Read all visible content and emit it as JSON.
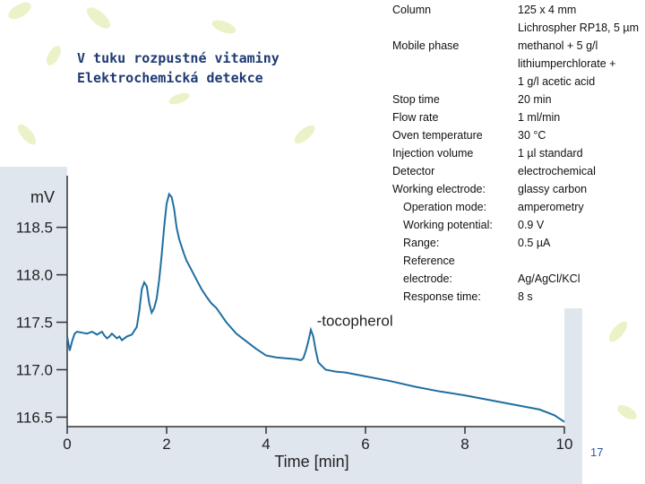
{
  "slide": {
    "title_line1": "V tuku rozpustné vitaminy",
    "title_line2": "Elektrochemická detekce",
    "page_number": "17"
  },
  "conditions": [
    {
      "key": "Column",
      "value": "125 x 4 mm"
    },
    {
      "key": "",
      "value": "Lichrospher RP18, 5 µm"
    },
    {
      "key": "Mobile phase",
      "value": "methanol + 5 g/l"
    },
    {
      "key": "",
      "value": "lithiumperchlorate +"
    },
    {
      "key": "",
      "value": "1 g/l acetic acid"
    },
    {
      "key": "Stop time",
      "value": "20 min"
    },
    {
      "key": "Flow rate",
      "value": "1 ml/min"
    },
    {
      "key": "Oven temperature",
      "value": "30 °C"
    },
    {
      "key": "Injection volume",
      "value": "1 µl standard"
    },
    {
      "key": "Detector",
      "value": "electrochemical"
    },
    {
      "key": "Working electrode:",
      "value": "glassy carbon"
    },
    {
      "key": "Operation mode:",
      "value": "amperometry"
    },
    {
      "key": "Working potential:",
      "value": "0.9 V"
    },
    {
      "key": "Range:",
      "value": "0.5 µA"
    },
    {
      "key": "Reference",
      "value": ""
    },
    {
      "key": "electrode:",
      "value": "Ag/AgCl/KCl"
    },
    {
      "key": "Response time:",
      "value": "8 s"
    }
  ],
  "chart_data": {
    "type": "line",
    "xlabel": "Time [min]",
    "ylabel": "mV",
    "xlim": [
      0,
      10
    ],
    "ylim": [
      116.4,
      118.95
    ],
    "xticks": [
      0,
      2,
      4,
      6,
      8,
      10
    ],
    "yticks": [
      116.5,
      117.0,
      117.5,
      118.0,
      118.5
    ],
    "xtick_labels": [
      "0",
      "2",
      "4",
      "6",
      "8",
      "10"
    ],
    "ytick_labels": [
      "116.5",
      "117.0",
      "117.5",
      "118.0",
      "118.5"
    ],
    "annotation": {
      "text": "-tocopherol",
      "x": 5.2,
      "y": 117.52
    },
    "line_color": "#1f6f9f",
    "series": [
      {
        "x": [
          0,
          0.05,
          0.1,
          0.15,
          0.2,
          0.3,
          0.4,
          0.5,
          0.6,
          0.7,
          0.75,
          0.8,
          0.85,
          0.9,
          1.0,
          1.05,
          1.1,
          1.2,
          1.3,
          1.4,
          1.45,
          1.5,
          1.55,
          1.6,
          1.65,
          1.7,
          1.75,
          1.8,
          1.85,
          1.9,
          1.95,
          2.0,
          2.05,
          2.1,
          2.15,
          2.2,
          2.25,
          2.3,
          2.35,
          2.4,
          2.5,
          2.6,
          2.7,
          2.8,
          2.9,
          3.0,
          3.2,
          3.4,
          3.6,
          3.8,
          4.0,
          4.2,
          4.4,
          4.6,
          4.7,
          4.75,
          4.8,
          4.85,
          4.9,
          4.95,
          5.0,
          5.05,
          5.1,
          5.2,
          5.4,
          5.6,
          6.0,
          6.5,
          7.0,
          7.5,
          8.0,
          8.5,
          9.0,
          9.5,
          9.8,
          10.0
        ],
        "y": [
          117.35,
          117.2,
          117.3,
          117.38,
          117.4,
          117.39,
          117.38,
          117.4,
          117.37,
          117.4,
          117.36,
          117.33,
          117.35,
          117.38,
          117.33,
          117.35,
          117.31,
          117.35,
          117.37,
          117.45,
          117.62,
          117.85,
          117.92,
          117.88,
          117.7,
          117.6,
          117.65,
          117.75,
          117.95,
          118.2,
          118.5,
          118.75,
          118.85,
          118.82,
          118.7,
          118.5,
          118.38,
          118.3,
          118.22,
          118.15,
          118.05,
          117.95,
          117.85,
          117.77,
          117.7,
          117.65,
          117.5,
          117.38,
          117.3,
          117.22,
          117.15,
          117.13,
          117.12,
          117.11,
          117.1,
          117.12,
          117.2,
          117.3,
          117.42,
          117.35,
          117.2,
          117.08,
          117.05,
          117.0,
          116.98,
          116.97,
          116.93,
          116.88,
          116.82,
          116.77,
          116.73,
          116.68,
          116.63,
          116.58,
          116.52,
          116.45
        ]
      }
    ]
  }
}
